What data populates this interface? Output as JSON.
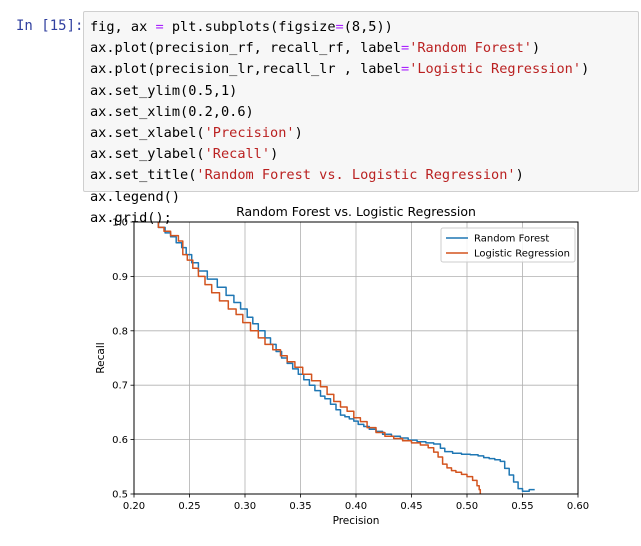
{
  "cell": {
    "prompt": "In [15]:",
    "code_lines": [
      [
        {
          "t": "fig, ax "
        },
        {
          "t": "=",
          "c": "o"
        },
        {
          "t": " plt.subplots(figsize"
        },
        {
          "t": "=",
          "c": "o"
        },
        {
          "t": "(8,5))"
        }
      ],
      [
        {
          "t": "ax.plot(precision_rf, recall_rf, label"
        },
        {
          "t": "=",
          "c": "o"
        },
        {
          "t": "'Random Forest'",
          "c": "s"
        },
        {
          "t": ")"
        }
      ],
      [
        {
          "t": "ax.plot(precision_lr,recall_lr , label"
        },
        {
          "t": "=",
          "c": "o"
        },
        {
          "t": "'Logistic Regression'",
          "c": "s"
        },
        {
          "t": ")"
        }
      ],
      [
        {
          "t": "ax.set_ylim(0.5,1)"
        }
      ],
      [
        {
          "t": "ax.set_xlim(0.2,0.6)"
        }
      ],
      [
        {
          "t": "ax.set_xlabel("
        },
        {
          "t": "'Precision'",
          "c": "s"
        },
        {
          "t": ")"
        }
      ],
      [
        {
          "t": "ax.set_ylabel("
        },
        {
          "t": "'Recall'",
          "c": "s"
        },
        {
          "t": ")"
        }
      ],
      [
        {
          "t": "ax.set_title("
        },
        {
          "t": "'Random Forest vs. Logistic Regression'",
          "c": "s"
        },
        {
          "t": ")"
        }
      ],
      [
        {
          "t": "ax.legend()"
        }
      ],
      [
        {
          "t": "ax.grid();"
        }
      ]
    ]
  },
  "colors": {
    "prompt": "#303f9f",
    "string": "#ba2121",
    "operator": "#aa22ff",
    "series_rf": "#1f77b4",
    "series_lr": "#d3541f"
  },
  "chart_data": {
    "type": "line",
    "title": "Random Forest vs. Logistic Regression",
    "xlabel": "Precision",
    "ylabel": "Recall",
    "xlim": [
      0.2,
      0.6
    ],
    "ylim": [
      0.5,
      1.0
    ],
    "xticks": [
      "0.20",
      "0.25",
      "0.30",
      "0.35",
      "0.40",
      "0.45",
      "0.50",
      "0.55",
      "0.60"
    ],
    "yticks": [
      "0.5",
      "0.6",
      "0.7",
      "0.8",
      "0.9",
      "1.0"
    ],
    "grid": true,
    "legend_position": "top-right",
    "series": [
      {
        "name": "Random Forest",
        "color": "#1f77b4",
        "x": [
          0.222,
          0.228,
          0.233,
          0.238,
          0.243,
          0.247,
          0.252,
          0.258,
          0.266,
          0.275,
          0.283,
          0.29,
          0.296,
          0.302,
          0.307,
          0.312,
          0.318,
          0.323,
          0.328,
          0.333,
          0.338,
          0.343,
          0.348,
          0.353,
          0.358,
          0.363,
          0.368,
          0.372,
          0.377,
          0.382,
          0.386,
          0.39,
          0.394,
          0.398,
          0.402,
          0.407,
          0.412,
          0.418,
          0.424,
          0.432,
          0.44,
          0.447,
          0.455,
          0.463,
          0.47,
          0.476,
          0.48,
          0.487,
          0.495,
          0.503,
          0.51,
          0.515,
          0.52,
          0.525,
          0.53,
          0.534,
          0.538,
          0.542,
          0.546,
          0.55,
          0.556,
          0.561
        ],
        "y": [
          1.0,
          0.99,
          0.98,
          0.973,
          0.962,
          0.953,
          0.94,
          0.925,
          0.91,
          0.895,
          0.88,
          0.865,
          0.852,
          0.84,
          0.825,
          0.813,
          0.8,
          0.787,
          0.775,
          0.762,
          0.75,
          0.74,
          0.73,
          0.72,
          0.71,
          0.7,
          0.69,
          0.68,
          0.675,
          0.665,
          0.655,
          0.645,
          0.642,
          0.638,
          0.634,
          0.628,
          0.624,
          0.619,
          0.615,
          0.61,
          0.606,
          0.603,
          0.599,
          0.596,
          0.594,
          0.592,
          0.584,
          0.578,
          0.575,
          0.573,
          0.572,
          0.57,
          0.567,
          0.565,
          0.563,
          0.56,
          0.547,
          0.535,
          0.522,
          0.51,
          0.505,
          0.508
        ]
      },
      {
        "name": "Logistic Regression",
        "color": "#d3541f",
        "x": [
          0.222,
          0.227,
          0.233,
          0.24,
          0.244,
          0.248,
          0.253,
          0.258,
          0.264,
          0.27,
          0.277,
          0.285,
          0.292,
          0.298,
          0.305,
          0.312,
          0.318,
          0.325,
          0.332,
          0.338,
          0.345,
          0.352,
          0.36,
          0.368,
          0.374,
          0.38,
          0.386,
          0.392,
          0.398,
          0.404,
          0.41,
          0.418,
          0.426,
          0.434,
          0.442,
          0.45,
          0.458,
          0.465,
          0.47,
          0.474,
          0.478,
          0.482,
          0.486,
          0.49,
          0.495,
          0.5,
          0.505,
          0.509,
          0.511,
          0.512,
          0.512
        ],
        "y": [
          1.0,
          0.99,
          0.983,
          0.975,
          0.965,
          0.94,
          0.93,
          0.915,
          0.9,
          0.885,
          0.87,
          0.855,
          0.84,
          0.83,
          0.815,
          0.8,
          0.787,
          0.775,
          0.765,
          0.754,
          0.743,
          0.733,
          0.72,
          0.708,
          0.697,
          0.683,
          0.67,
          0.66,
          0.652,
          0.64,
          0.633,
          0.622,
          0.613,
          0.606,
          0.602,
          0.598,
          0.594,
          0.59,
          0.585,
          0.577,
          0.568,
          0.555,
          0.548,
          0.543,
          0.54,
          0.536,
          0.532,
          0.525,
          0.515,
          0.508,
          0.5
        ]
      }
    ]
  }
}
